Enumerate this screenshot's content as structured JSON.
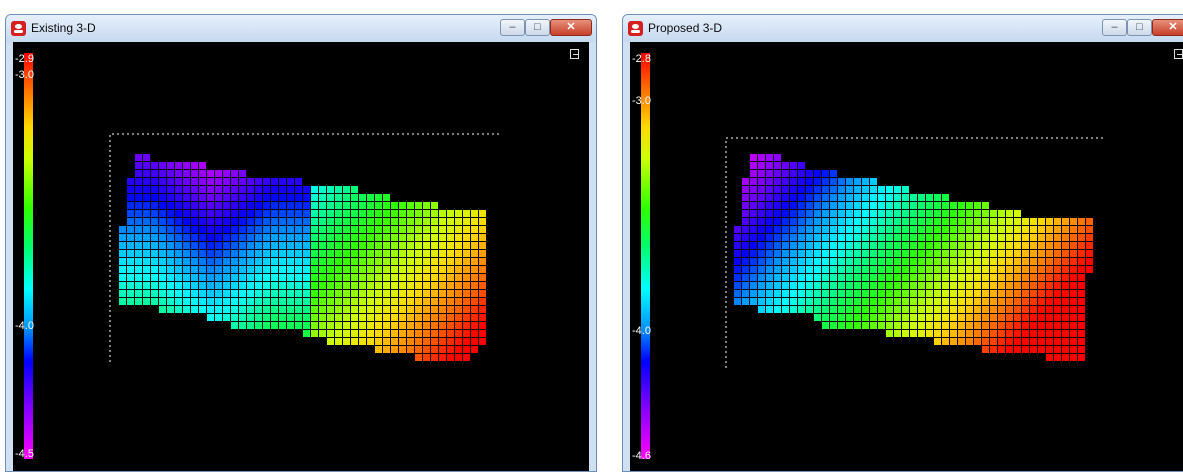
{
  "windows": [
    {
      "id": "left",
      "title": "Existing 3-D",
      "buttons": {
        "minimize": "–",
        "maximize": "□",
        "close": "✕"
      },
      "colorbar": {
        "max_label": "-2.9",
        "tick_labels": [
          "-3.0",
          "-4.0"
        ],
        "min_label": "-4.5"
      },
      "icons": {
        "app": "app-logo-icon",
        "corner": "restore-view-icon"
      },
      "surface_values": {
        "min": -4.5,
        "max": -2.9,
        "description_hidden": false
      }
    },
    {
      "id": "right",
      "title": "Proposed 3-D",
      "buttons": {
        "minimize": "–",
        "maximize": "□",
        "close": "✕"
      },
      "colorbar": {
        "max_label": "-2.8",
        "tick_labels": [
          "-3.0",
          "-4.0"
        ],
        "min_label": "-4.6"
      },
      "icons": {
        "app": "app-logo-icon",
        "corner": "restore-view-icon"
      },
      "surface_values": {
        "min": -4.6,
        "max": -2.8,
        "description_hidden": false
      }
    }
  ],
  "colors": {
    "window_frame": "#cfe0f3",
    "client_background": "#000000",
    "close_button": "#c7402a",
    "text_on_dark": "#ffffff"
  }
}
